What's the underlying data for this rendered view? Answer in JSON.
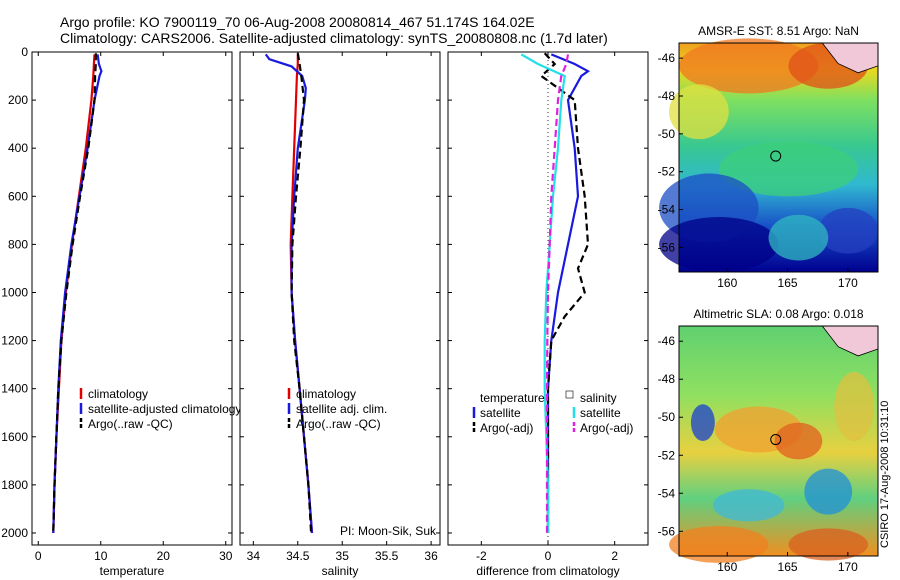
{
  "header": {
    "title_line1": "Argo profile: KO 7900119_70 06-Aug-2008 20080814_467 51.174S 164.02E",
    "title_line2": "Climatology: CARS2006. Satellite-adjusted climatology: synTS_20080808.nc (1.7d later)"
  },
  "colors": {
    "red": "#e00000",
    "blue": "#1a1adf",
    "black": "#000000",
    "cyan": "#22e0e8",
    "magenta": "#e020e0"
  },
  "chart_data": [
    {
      "id": "temperature",
      "type": "line",
      "xlabel": "temperature",
      "ylabel": "",
      "xlim": [
        -1,
        31
      ],
      "ylim": [
        2050,
        0
      ],
      "xticks": [
        0,
        10,
        20,
        30
      ],
      "yticks": [
        0,
        200,
        400,
        600,
        800,
        1000,
        1200,
        1400,
        1600,
        1800,
        2000
      ],
      "legend": [
        "climatology",
        "satellite-adjusted climatology",
        "Argo(..raw -QC)"
      ],
      "series": [
        {
          "name": "climatology",
          "color": "red",
          "dash": "",
          "depth": [
            10,
            50,
            100,
            200,
            400,
            600,
            800,
            1000,
            1200,
            1400,
            1600,
            1800,
            2000
          ],
          "values": [
            9.0,
            8.9,
            8.8,
            8.5,
            7.6,
            6.5,
            5.4,
            4.4,
            3.7,
            3.3,
            2.9,
            2.6,
            2.4
          ]
        },
        {
          "name": "satellite-adjusted climatology",
          "color": "blue",
          "dash": "",
          "depth": [
            10,
            50,
            80,
            100,
            200,
            400,
            600,
            800,
            1000,
            1200,
            1400,
            1600,
            1800,
            2000
          ],
          "values": [
            9.5,
            9.7,
            10.1,
            9.8,
            9.0,
            7.9,
            6.6,
            5.3,
            4.3,
            3.6,
            3.2,
            2.9,
            2.6,
            2.4
          ]
        },
        {
          "name": "Argo(..raw -QC)",
          "color": "black",
          "dash": "7,4",
          "depth": [
            5,
            50,
            100,
            200,
            400,
            600,
            800,
            1000,
            1200,
            1400,
            1600,
            1800,
            2000
          ],
          "values": [
            9.2,
            9.2,
            9.1,
            9.0,
            8.0,
            6.7,
            5.5,
            4.5,
            3.7,
            3.2,
            2.9,
            2.6,
            2.4
          ]
        }
      ]
    },
    {
      "id": "salinity",
      "type": "line",
      "xlabel": "salinity",
      "ylabel": "",
      "xlim": [
        33.85,
        36.1
      ],
      "ylim": [
        2050,
        0
      ],
      "xticks": [
        34,
        34.5,
        35,
        35.5,
        36
      ],
      "yticks": [
        0,
        200,
        400,
        600,
        800,
        1000,
        1200,
        1400,
        1600,
        1800,
        2000
      ],
      "legend": [
        "climatology",
        "satellite adj. clim.",
        "Argo(..raw -QC)"
      ],
      "annotation": "PI: Moon-Sik, Suk",
      "series": [
        {
          "name": "climatology",
          "color": "red",
          "dash": "",
          "depth": [
            10,
            50,
            100,
            200,
            400,
            600,
            800,
            1000,
            1200,
            1400,
            1600,
            1800,
            2000
          ],
          "values": [
            34.5,
            34.5,
            34.49,
            34.48,
            34.46,
            34.44,
            34.42,
            34.43,
            34.47,
            34.52,
            34.57,
            34.62,
            34.66
          ]
        },
        {
          "name": "satellite adj. clim.",
          "color": "blue",
          "dash": "",
          "depth": [
            10,
            30,
            60,
            100,
            150,
            200,
            400,
            600,
            800,
            1000,
            1200,
            1400,
            1600,
            1800,
            2000
          ],
          "values": [
            34.14,
            34.18,
            34.43,
            34.55,
            34.59,
            34.58,
            34.5,
            34.46,
            34.43,
            34.43,
            34.47,
            34.52,
            34.57,
            34.62,
            34.66
          ]
        },
        {
          "name": "Argo(..raw -QC)",
          "color": "black",
          "dash": "7,4",
          "depth": [
            5,
            50,
            100,
            200,
            400,
            600,
            800,
            1000,
            1200,
            1400,
            1600,
            1800,
            2000
          ],
          "values": [
            34.5,
            34.52,
            34.54,
            34.57,
            34.53,
            34.48,
            34.44,
            34.43,
            34.46,
            34.52,
            34.57,
            34.62,
            34.65
          ]
        }
      ]
    },
    {
      "id": "difference",
      "type": "line",
      "xlabel": "difference from climatology",
      "ylabel": "",
      "xlim": [
        -3,
        3
      ],
      "ylim": [
        2050,
        0
      ],
      "xticks": [
        -2,
        0,
        2
      ],
      "yticks": [
        0,
        200,
        400,
        600,
        800,
        1000,
        1200,
        1400,
        1600,
        1800,
        2000
      ],
      "legend_left_header": "temperature",
      "legend_right_header": "salinity",
      "legend_left": [
        "satellite",
        "Argo(-adj)"
      ],
      "legend_right": [
        "satellite",
        "Argo(-adj)"
      ],
      "series": [
        {
          "name": "temperature satellite",
          "color": "blue",
          "dash": "",
          "depth": [
            10,
            50,
            80,
            100,
            200,
            400,
            600,
            800,
            1000,
            1200,
            1400,
            1600,
            1800,
            2000
          ],
          "values": [
            0.1,
            0.8,
            1.2,
            1.0,
            0.6,
            0.8,
            0.9,
            0.6,
            0.3,
            0.1,
            0.0,
            0.0,
            0.0,
            0.0
          ]
        },
        {
          "name": "temperature Argo(-adj)",
          "color": "black",
          "dash": "7,4",
          "depth": [
            5,
            50,
            100,
            200,
            400,
            600,
            800,
            900,
            1000,
            1100,
            1200,
            1400,
            1600,
            1800,
            2000
          ],
          "values": [
            -0.1,
            0.2,
            -0.2,
            0.8,
            0.9,
            1.1,
            1.2,
            0.9,
            1.1,
            0.5,
            0.1,
            0.0,
            0.0,
            0.0,
            0.0
          ]
        },
        {
          "name": "salinity satellite",
          "color": "cyan",
          "dash": "",
          "depth": [
            10,
            50,
            100,
            200,
            400,
            600,
            800,
            1000,
            1200,
            1400,
            1600,
            1800,
            2000
          ],
          "values": [
            -0.8,
            -0.3,
            0.5,
            0.4,
            0.3,
            0.15,
            0.05,
            -0.05,
            -0.1,
            -0.1,
            -0.05,
            0.0,
            0.0
          ]
        },
        {
          "name": "salinity Argo(-adj)",
          "color": "magenta",
          "dash": "7,4",
          "depth": [
            10,
            50,
            100,
            200,
            400,
            600,
            800,
            1000,
            1200,
            1400,
            1600,
            1800,
            2000
          ],
          "values": [
            0.6,
            0.55,
            0.4,
            0.3,
            0.2,
            0.1,
            0.05,
            0.0,
            -0.02,
            -0.03,
            -0.03,
            -0.03,
            -0.03
          ]
        }
      ]
    },
    {
      "id": "amsre_sst_map",
      "type": "heatmap",
      "title": "AMSR-E SST: 8.51 Argo: NaN",
      "xlim": [
        156,
        172.5
      ],
      "ylim": [
        -57.3,
        -45.2
      ],
      "xticks": [
        160,
        165,
        170
      ],
      "yticks": [
        -46,
        -48,
        -50,
        -52,
        -54,
        -56
      ],
      "marker": {
        "lon": 164.02,
        "lat": -51.174
      }
    },
    {
      "id": "altimetric_sla_map",
      "type": "heatmap",
      "title": "Altimetric SLA: 0.08 Argo: 0.018",
      "xlim": [
        156,
        172.5
      ],
      "ylim": [
        -57.3,
        -45.2
      ],
      "xticks": [
        160,
        165,
        170
      ],
      "yticks": [
        -46,
        -48,
        -50,
        -52,
        -54,
        -56
      ],
      "marker": {
        "lon": 164.02,
        "lat": -51.174
      }
    }
  ],
  "footer": {
    "stamp": "CSIRO 17-Aug-2008 10:31:10"
  }
}
